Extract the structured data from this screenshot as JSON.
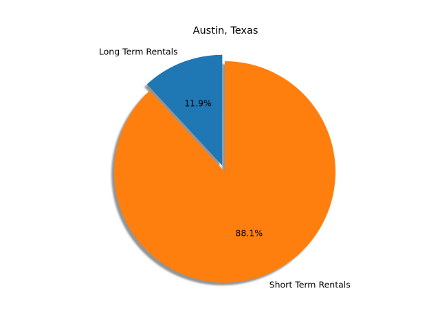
{
  "chart_data": {
    "type": "pie",
    "title": "Austin, Texas",
    "start_angle_deg": 90,
    "direction": "counterclockwise",
    "shadow": true,
    "slices": [
      {
        "label": "Long Term Rentals",
        "value": 11.9,
        "pct_label": "11.9%",
        "color": "#1f77b4",
        "exploded": true
      },
      {
        "label": "Short Term Rentals",
        "value": 88.1,
        "pct_label": "88.1%",
        "color": "#ff7f0e",
        "exploded": false
      }
    ]
  }
}
